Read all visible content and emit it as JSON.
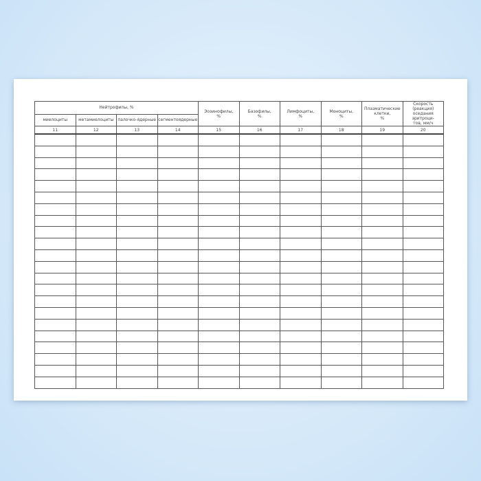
{
  "table": {
    "group_header": "Нейтрофилы, %",
    "sub_headers": [
      "миелоциты",
      "метамиелоциты",
      "палочко-ядерные",
      "сегментоядерные"
    ],
    "other_headers": [
      [
        "Эозинофилы,",
        "%"
      ],
      [
        "Базофилы,",
        "%"
      ],
      [
        "Лимфоциты,",
        "%"
      ],
      [
        "Моноциты,",
        "%"
      ],
      [
        "Плазматические",
        "клетки,",
        "%"
      ],
      [
        "Скорость (реакция)",
        "оседания эритроци-",
        "тов,  мм/ч"
      ]
    ],
    "column_numbers": [
      "11",
      "12",
      "13",
      "14",
      "15",
      "16",
      "17",
      "18",
      "19",
      "20"
    ],
    "empty_rows": 22
  }
}
